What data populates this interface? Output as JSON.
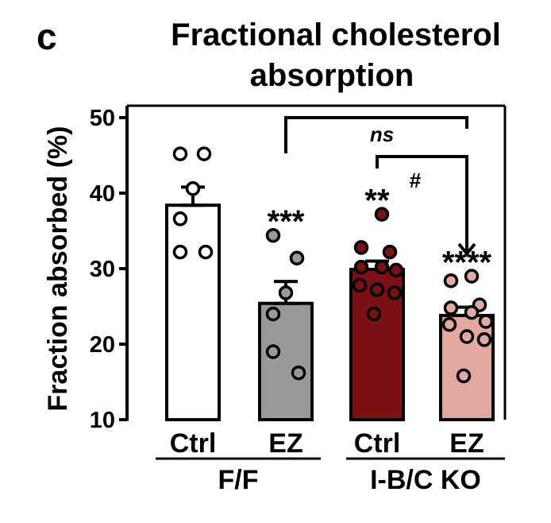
{
  "panel_label": "c",
  "chart_data": {
    "type": "bar",
    "title_lines": [
      "Fractional cholesterol",
      "absorption"
    ],
    "ylabel": "Fraction absorbed (%)",
    "ylim": [
      10,
      50
    ],
    "yticks": [
      "10",
      "20",
      "30",
      "40",
      "50"
    ],
    "categories": [
      "Ctrl",
      "EZ",
      "Ctrl",
      "EZ"
    ],
    "groups": [
      {
        "label": "F/F"
      },
      {
        "label": "I-B/C KO"
      }
    ],
    "bars": [
      {
        "category": "Ctrl",
        "group": "F/F",
        "mean": 38.4,
        "sem": 2.4,
        "fill": "#ffffff",
        "points": [
          45.2,
          45.2,
          40.6,
          36.6,
          32.2,
          32.2
        ]
      },
      {
        "category": "EZ",
        "group": "F/F",
        "mean": 25.4,
        "sem": 2.9,
        "fill": "#999999",
        "points": [
          34.4,
          31.4,
          26.8,
          24.0,
          19.0,
          16.2
        ]
      },
      {
        "category": "Ctrl",
        "group": "I-B/C KO",
        "mean": 29.9,
        "sem": 1.1,
        "fill": "#7b1113",
        "points": [
          37.2,
          32.8,
          32.2,
          30.2,
          30.2,
          29.8,
          27.8,
          27.2,
          26.8,
          24.0
        ]
      },
      {
        "category": "EZ",
        "group": "I-B/C KO",
        "mean": 23.8,
        "sem": 1.1,
        "fill": "#e3a9a0",
        "points": [
          29.0,
          28.4,
          25.2,
          24.8,
          24.2,
          23.0,
          22.6,
          21.0,
          20.6,
          15.8
        ]
      }
    ],
    "significance": [
      {
        "bar_index": 1,
        "label": "***"
      },
      {
        "bar_index": 2,
        "label": "**"
      },
      {
        "bar_index": 3,
        "label": "****"
      }
    ],
    "brackets": [
      {
        "from": 1,
        "to": 3,
        "label": "ns"
      },
      {
        "from": 2,
        "to": 3,
        "label": "#"
      }
    ]
  }
}
